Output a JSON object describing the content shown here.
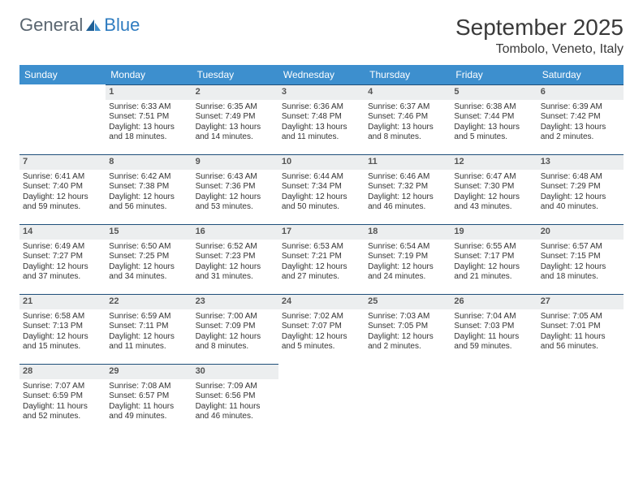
{
  "brand": {
    "word1": "General",
    "word2": "Blue"
  },
  "title": "September 2025",
  "location": "Tombolo, Veneto, Italy",
  "colors": {
    "header_bg": "#3d8fce",
    "header_text": "#ffffff",
    "daynum_bg": "#eceeef",
    "daynum_border": "#1f4f7a",
    "text": "#333333",
    "brand_gray": "#5a6670",
    "brand_blue": "#2f7cc0"
  },
  "weekdays": [
    "Sunday",
    "Monday",
    "Tuesday",
    "Wednesday",
    "Thursday",
    "Friday",
    "Saturday"
  ],
  "weeks": [
    [
      null,
      {
        "n": "1",
        "sr": "Sunrise: 6:33 AM",
        "ss": "Sunset: 7:51 PM",
        "dl": "Daylight: 13 hours and 18 minutes."
      },
      {
        "n": "2",
        "sr": "Sunrise: 6:35 AM",
        "ss": "Sunset: 7:49 PM",
        "dl": "Daylight: 13 hours and 14 minutes."
      },
      {
        "n": "3",
        "sr": "Sunrise: 6:36 AM",
        "ss": "Sunset: 7:48 PM",
        "dl": "Daylight: 13 hours and 11 minutes."
      },
      {
        "n": "4",
        "sr": "Sunrise: 6:37 AM",
        "ss": "Sunset: 7:46 PM",
        "dl": "Daylight: 13 hours and 8 minutes."
      },
      {
        "n": "5",
        "sr": "Sunrise: 6:38 AM",
        "ss": "Sunset: 7:44 PM",
        "dl": "Daylight: 13 hours and 5 minutes."
      },
      {
        "n": "6",
        "sr": "Sunrise: 6:39 AM",
        "ss": "Sunset: 7:42 PM",
        "dl": "Daylight: 13 hours and 2 minutes."
      }
    ],
    [
      {
        "n": "7",
        "sr": "Sunrise: 6:41 AM",
        "ss": "Sunset: 7:40 PM",
        "dl": "Daylight: 12 hours and 59 minutes."
      },
      {
        "n": "8",
        "sr": "Sunrise: 6:42 AM",
        "ss": "Sunset: 7:38 PM",
        "dl": "Daylight: 12 hours and 56 minutes."
      },
      {
        "n": "9",
        "sr": "Sunrise: 6:43 AM",
        "ss": "Sunset: 7:36 PM",
        "dl": "Daylight: 12 hours and 53 minutes."
      },
      {
        "n": "10",
        "sr": "Sunrise: 6:44 AM",
        "ss": "Sunset: 7:34 PM",
        "dl": "Daylight: 12 hours and 50 minutes."
      },
      {
        "n": "11",
        "sr": "Sunrise: 6:46 AM",
        "ss": "Sunset: 7:32 PM",
        "dl": "Daylight: 12 hours and 46 minutes."
      },
      {
        "n": "12",
        "sr": "Sunrise: 6:47 AM",
        "ss": "Sunset: 7:30 PM",
        "dl": "Daylight: 12 hours and 43 minutes."
      },
      {
        "n": "13",
        "sr": "Sunrise: 6:48 AM",
        "ss": "Sunset: 7:29 PM",
        "dl": "Daylight: 12 hours and 40 minutes."
      }
    ],
    [
      {
        "n": "14",
        "sr": "Sunrise: 6:49 AM",
        "ss": "Sunset: 7:27 PM",
        "dl": "Daylight: 12 hours and 37 minutes."
      },
      {
        "n": "15",
        "sr": "Sunrise: 6:50 AM",
        "ss": "Sunset: 7:25 PM",
        "dl": "Daylight: 12 hours and 34 minutes."
      },
      {
        "n": "16",
        "sr": "Sunrise: 6:52 AM",
        "ss": "Sunset: 7:23 PM",
        "dl": "Daylight: 12 hours and 31 minutes."
      },
      {
        "n": "17",
        "sr": "Sunrise: 6:53 AM",
        "ss": "Sunset: 7:21 PM",
        "dl": "Daylight: 12 hours and 27 minutes."
      },
      {
        "n": "18",
        "sr": "Sunrise: 6:54 AM",
        "ss": "Sunset: 7:19 PM",
        "dl": "Daylight: 12 hours and 24 minutes."
      },
      {
        "n": "19",
        "sr": "Sunrise: 6:55 AM",
        "ss": "Sunset: 7:17 PM",
        "dl": "Daylight: 12 hours and 21 minutes."
      },
      {
        "n": "20",
        "sr": "Sunrise: 6:57 AM",
        "ss": "Sunset: 7:15 PM",
        "dl": "Daylight: 12 hours and 18 minutes."
      }
    ],
    [
      {
        "n": "21",
        "sr": "Sunrise: 6:58 AM",
        "ss": "Sunset: 7:13 PM",
        "dl": "Daylight: 12 hours and 15 minutes."
      },
      {
        "n": "22",
        "sr": "Sunrise: 6:59 AM",
        "ss": "Sunset: 7:11 PM",
        "dl": "Daylight: 12 hours and 11 minutes."
      },
      {
        "n": "23",
        "sr": "Sunrise: 7:00 AM",
        "ss": "Sunset: 7:09 PM",
        "dl": "Daylight: 12 hours and 8 minutes."
      },
      {
        "n": "24",
        "sr": "Sunrise: 7:02 AM",
        "ss": "Sunset: 7:07 PM",
        "dl": "Daylight: 12 hours and 5 minutes."
      },
      {
        "n": "25",
        "sr": "Sunrise: 7:03 AM",
        "ss": "Sunset: 7:05 PM",
        "dl": "Daylight: 12 hours and 2 minutes."
      },
      {
        "n": "26",
        "sr": "Sunrise: 7:04 AM",
        "ss": "Sunset: 7:03 PM",
        "dl": "Daylight: 11 hours and 59 minutes."
      },
      {
        "n": "27",
        "sr": "Sunrise: 7:05 AM",
        "ss": "Sunset: 7:01 PM",
        "dl": "Daylight: 11 hours and 56 minutes."
      }
    ],
    [
      {
        "n": "28",
        "sr": "Sunrise: 7:07 AM",
        "ss": "Sunset: 6:59 PM",
        "dl": "Daylight: 11 hours and 52 minutes."
      },
      {
        "n": "29",
        "sr": "Sunrise: 7:08 AM",
        "ss": "Sunset: 6:57 PM",
        "dl": "Daylight: 11 hours and 49 minutes."
      },
      {
        "n": "30",
        "sr": "Sunrise: 7:09 AM",
        "ss": "Sunset: 6:56 PM",
        "dl": "Daylight: 11 hours and 46 minutes."
      },
      null,
      null,
      null,
      null
    ]
  ]
}
